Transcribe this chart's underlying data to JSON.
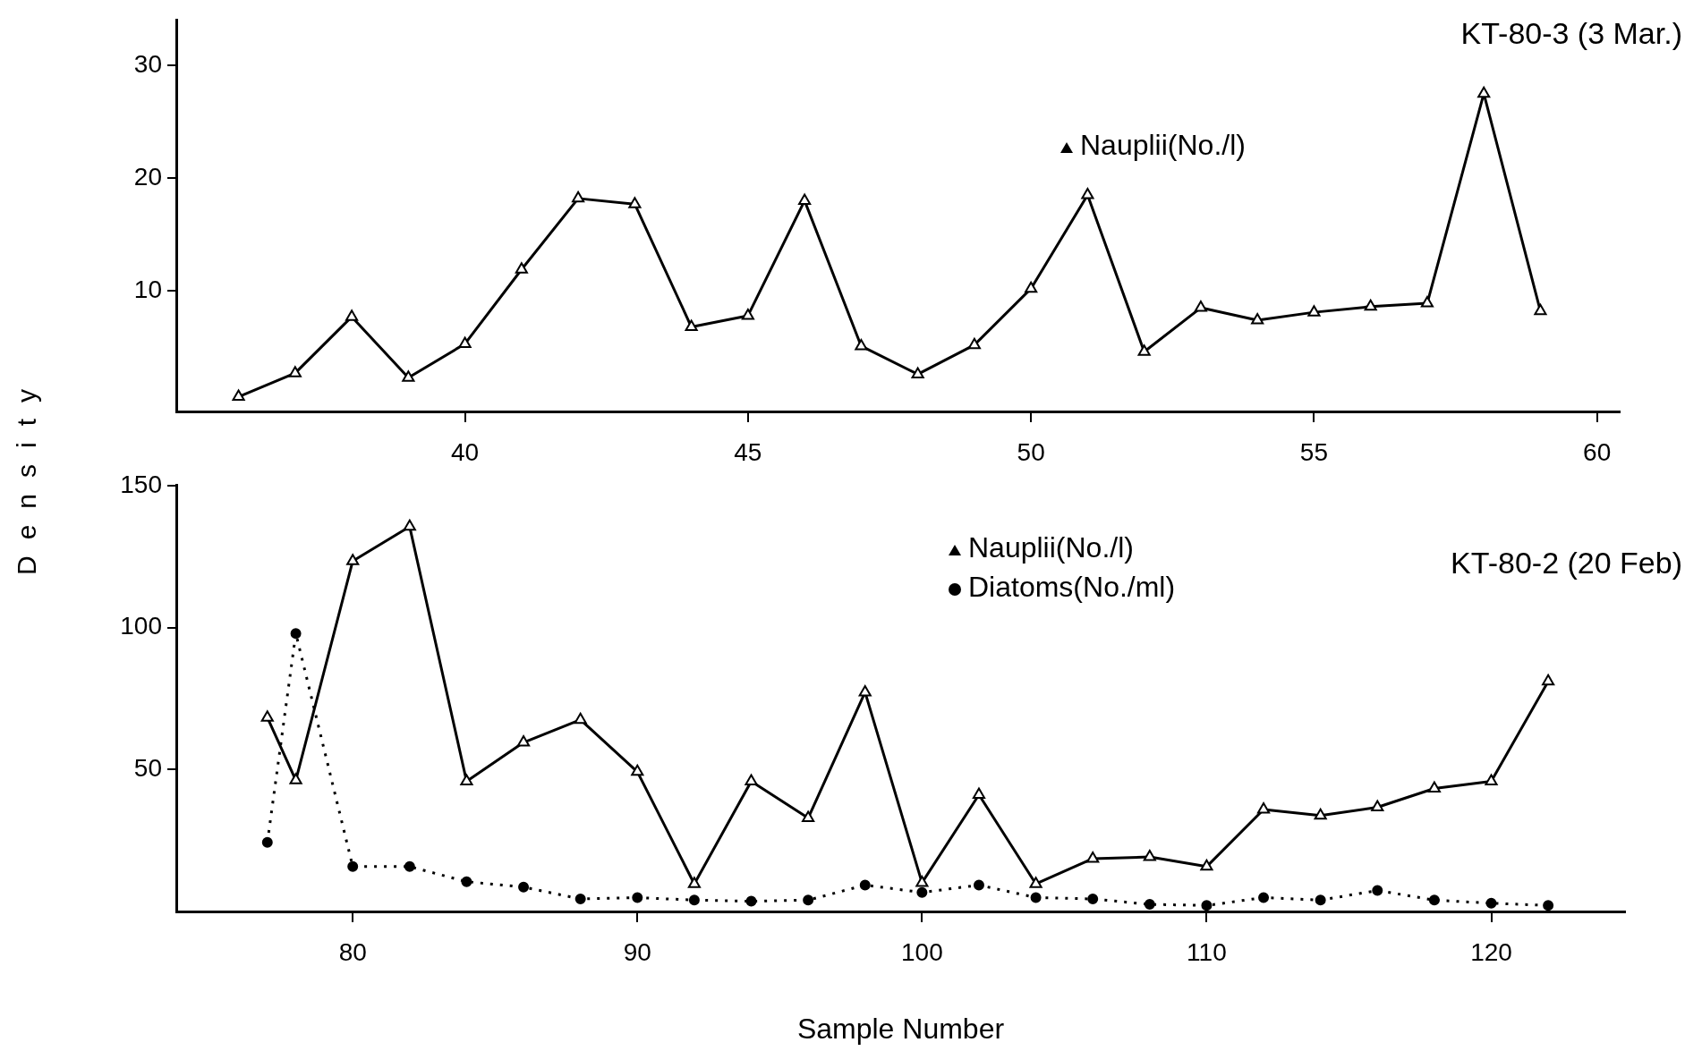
{
  "chart_data": [
    {
      "type": "line",
      "title": "KT-80-3 (3 Mar.)",
      "ylabel": "Density",
      "x": [
        36,
        37,
        38,
        39,
        40,
        41,
        42,
        43,
        44,
        45,
        46,
        47,
        48,
        49,
        50,
        51,
        52,
        53,
        54,
        55,
        56,
        57,
        58,
        59
      ],
      "series": [
        {
          "name": "Nauplii(No./l)",
          "color": "#000000",
          "marker": "triangle",
          "line_style": "solid",
          "values": [
            0.6,
            2.7,
            7.7,
            2.3,
            5.3,
            11.9,
            18.2,
            17.7,
            6.8,
            7.8,
            18.0,
            5.1,
            2.6,
            5.2,
            10.2,
            18.5,
            4.6,
            8.5,
            7.4,
            8.1,
            8.6,
            8.9,
            27.5,
            8.2
          ]
        }
      ],
      "xlim": [
        34.9,
        60.4
      ],
      "xticks": [
        40,
        45,
        50,
        55,
        60
      ],
      "ylim": [
        -0.7,
        34
      ],
      "yticks": [
        10,
        20,
        30
      ],
      "grid": false,
      "legend": "top"
    },
    {
      "type": "line",
      "title": "KT-80-2 (20 Feb)",
      "xlabel": "Sample Number",
      "x": [
        77,
        78,
        80,
        82,
        84,
        86,
        88,
        90,
        92,
        94,
        96,
        98,
        100,
        102,
        104,
        106,
        108,
        110,
        112,
        114,
        116,
        118,
        120,
        122
      ],
      "series": [
        {
          "name": "Nauplii(No./l)",
          "color": "#000000",
          "marker": "triangle",
          "line_style": "solid",
          "values": [
            68.3,
            46.2,
            123.4,
            135.5,
            45.8,
            59.5,
            67.5,
            49.2,
            9.7,
            45.8,
            32.9,
            77.2,
            10.1,
            41.1,
            9.7,
            18.6,
            19.2,
            15.8,
            35.9,
            33.8,
            36.7,
            43.3,
            45.8,
            81.0
          ]
        },
        {
          "name": "Diatoms(No./ml)",
          "color": "#000000",
          "marker": "circle",
          "line_style": "dotted",
          "values": [
            24.3,
            97.9,
            15.8,
            15.8,
            10.5,
            8.6,
            4.4,
            4.9,
            4.0,
            3.6,
            4.0,
            9.3,
            6.7,
            9.3,
            4.9,
            4.4,
            2.5,
            2.1,
            4.9,
            4.0,
            7.4,
            4.0,
            2.9,
            2.1
          ]
        }
      ],
      "xlim": [
        73.8,
        124.7
      ],
      "xticks": [
        80,
        90,
        100,
        110,
        120
      ],
      "ylim": [
        0,
        150
      ],
      "yticks": [
        50,
        100,
        150
      ],
      "grid": false,
      "legend": "top"
    }
  ]
}
